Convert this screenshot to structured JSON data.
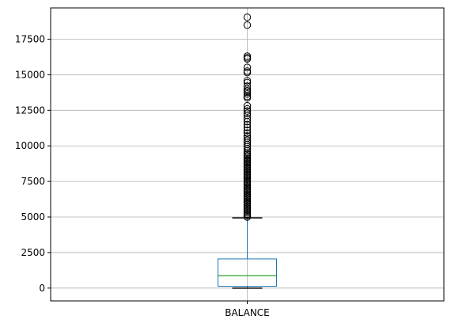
{
  "chart_data": {
    "type": "box",
    "categories": [
      "BALANCE"
    ],
    "ylim": [
      -900,
      19700
    ],
    "yticks": [
      0,
      2500,
      5000,
      7500,
      10000,
      12500,
      15000,
      17500
    ],
    "ytick_labels": [
      "0",
      "2500",
      "5000",
      "7500",
      "10000",
      "12500",
      "15000",
      "17500"
    ],
    "grid": true,
    "box": {
      "whisker_low": 0,
      "q1": 128,
      "median": 873,
      "q3": 2054,
      "whisker_high": 4940
    },
    "outliers": [
      19044,
      18495,
      16305,
      16115,
      16200,
      15520,
      15258,
      15155,
      14583,
      14450,
      14200,
      13980,
      13870,
      13770,
      13650,
      13480,
      13380,
      12820,
      12600,
      12450,
      12300,
      12150,
      11900,
      11700,
      11500,
      11300,
      11100,
      10900,
      10700,
      10550,
      10400,
      10250,
      10100,
      9950,
      9800,
      9650,
      9500,
      9400,
      9300,
      9200,
      9100,
      9000,
      8900,
      8800,
      8700,
      8600,
      8500,
      8400,
      8300,
      8200,
      8100,
      8000,
      7900,
      7800,
      7700,
      7600,
      7500,
      7400,
      7300,
      7200,
      7100,
      7000,
      6900,
      6800,
      6700,
      6600,
      6500,
      6400,
      6300,
      6200,
      6100,
      6000,
      5900,
      5800,
      5700,
      5600,
      5500,
      5400,
      5300,
      5200,
      5100,
      5000
    ],
    "colors": {
      "box": "#1f77b4",
      "median": "#2ca02c",
      "outlier": "#000000",
      "grid": "#b0b0b0"
    }
  }
}
